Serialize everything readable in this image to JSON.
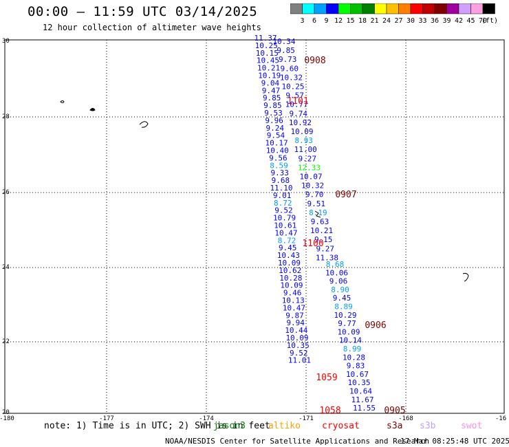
{
  "header": {
    "title": "00:00 – 11:59 UTC 03/14/2025",
    "subtitle": "12 hour collection of altimeter wave heights"
  },
  "colorbar": {
    "unit_label": "(ft)",
    "labels": [
      "3",
      "6",
      "9",
      "12",
      "15",
      "18",
      "21",
      "24",
      "27",
      "30",
      "33",
      "36",
      "39",
      "42",
      "45",
      "70"
    ],
    "colors": [
      "#808080",
      "#00ffff",
      "#00a0ff",
      "#0000ff",
      "#00ff00",
      "#00c000",
      "#008000",
      "#ffff00",
      "#ffc000",
      "#ff8000",
      "#ff0000",
      "#c00000",
      "#800000",
      "#a000a0",
      "#d0a0ff",
      "#ffa0e0",
      "#000000"
    ]
  },
  "axes": {
    "lon_ticks": [
      "-180",
      "-177",
      "-174",
      "-171",
      "-168",
      "-16"
    ],
    "lat_ticks": [
      "30",
      "28",
      "26",
      "24",
      "22",
      "20"
    ]
  },
  "points_left": [
    [
      "11.37",
      "#0000ff"
    ],
    [
      "10.25",
      "#0000ff"
    ],
    [
      "10.15",
      "#0000ff"
    ],
    [
      "10.45",
      "#0000ff"
    ],
    [
      "10.21",
      "#0000ff"
    ],
    [
      "10.19",
      "#0000ff"
    ],
    [
      "9.04",
      "#0000ff"
    ],
    [
      "9.47",
      "#0000ff"
    ],
    [
      "9.85",
      "#0000ff"
    ],
    [
      "9.85",
      "#0000ff"
    ],
    [
      "9.53",
      "#0000ff"
    ],
    [
      "9.96",
      "#0000ff"
    ],
    [
      "9.24",
      "#0000ff"
    ],
    [
      "9.54",
      "#0000ff"
    ],
    [
      "10.17",
      "#0000ff"
    ],
    [
      "10.40",
      "#0000ff"
    ],
    [
      "9.56",
      "#0000ff"
    ],
    [
      "8.59",
      "#00a0ff"
    ],
    [
      "9.33",
      "#0000ff"
    ],
    [
      "9.68",
      "#0000ff"
    ],
    [
      "11.10",
      "#0000ff"
    ],
    [
      "9.01",
      "#0000ff"
    ],
    [
      "8.72",
      "#00a0ff"
    ],
    [
      "9.52",
      "#0000ff"
    ],
    [
      "10.79",
      "#0000ff"
    ],
    [
      "10.61",
      "#0000ff"
    ],
    [
      "10.47",
      "#0000ff"
    ],
    [
      "8.72",
      "#00a0ff"
    ],
    [
      "9.45",
      "#0000ff"
    ],
    [
      "10.43",
      "#0000ff"
    ],
    [
      "10.09",
      "#0000ff"
    ],
    [
      "10.62",
      "#0000ff"
    ],
    [
      "10.28",
      "#0000ff"
    ],
    [
      "10.09",
      "#0000ff"
    ],
    [
      "9.46",
      "#0000ff"
    ],
    [
      "10.13",
      "#0000ff"
    ],
    [
      "10.47",
      "#0000ff"
    ],
    [
      "9.87",
      "#0000ff"
    ],
    [
      "9.94",
      "#0000ff"
    ],
    [
      "10.44",
      "#0000ff"
    ],
    [
      "10.09",
      "#0000ff"
    ],
    [
      "10.35",
      "#0000ff"
    ],
    [
      "9.52",
      "#0000ff"
    ],
    [
      "11.01",
      "#0000ff"
    ]
  ],
  "points_mid": [
    [
      "10.34",
      "#0000ff"
    ],
    [
      "9.85",
      "#0000ff"
    ],
    [
      "9.73",
      "#0000ff"
    ],
    [
      "9.60",
      "#0000ff"
    ],
    [
      "10.32",
      "#0000ff"
    ],
    [
      "10.25",
      "#0000ff"
    ],
    [
      "9.57",
      "#0000ff"
    ],
    [
      "10.77",
      "#0000ff"
    ],
    [
      "9.74",
      "#0000ff"
    ],
    [
      "10.92",
      "#0000ff"
    ],
    [
      "10.09",
      "#0000ff"
    ],
    [
      "8.93",
      "#00a0ff"
    ],
    [
      "11.00",
      "#0000ff"
    ],
    [
      "9.27",
      "#0000ff"
    ],
    [
      "12.33",
      "#00ff00"
    ],
    [
      "10.07",
      "#0000ff"
    ],
    [
      "10.32",
      "#0000ff"
    ],
    [
      "9.70",
      "#0000ff"
    ],
    [
      "9.51",
      "#0000ff"
    ],
    [
      "8.19",
      "#00a0ff"
    ],
    [
      "9.63",
      "#0000ff"
    ],
    [
      "10.21",
      "#0000ff"
    ],
    [
      "9.15",
      "#0000ff"
    ],
    [
      "9.27",
      "#0000ff"
    ],
    [
      "11.38",
      "#0000ff"
    ]
  ],
  "points_right": [
    [
      "8.68",
      "#00a0ff"
    ],
    [
      "10.06",
      "#0000ff"
    ],
    [
      "9.06",
      "#0000ff"
    ],
    [
      "8.90",
      "#00a0ff"
    ],
    [
      "9.45",
      "#0000ff"
    ],
    [
      "8.89",
      "#00a0ff"
    ],
    [
      "10.29",
      "#0000ff"
    ],
    [
      "9.77",
      "#0000ff"
    ],
    [
      "10.09",
      "#0000ff"
    ],
    [
      "10.14",
      "#0000ff"
    ],
    [
      "8.99",
      "#00a0ff"
    ],
    [
      "10.28",
      "#0000ff"
    ],
    [
      "9.83",
      "#0000ff"
    ],
    [
      "10.67",
      "#0000ff"
    ],
    [
      "10.35",
      "#0000ff"
    ],
    [
      "10.64",
      "#0000ff"
    ],
    [
      "11.67",
      "#0000ff"
    ],
    [
      "11.55",
      "#0000ff"
    ]
  ],
  "time_labels": [
    {
      "text": "0908",
      "color": "#800000"
    },
    {
      "text": "1101",
      "color": "#ff0000"
    },
    {
      "text": "0907",
      "color": "#800000"
    },
    {
      "text": "1100",
      "color": "#ff0000"
    },
    {
      "text": "0906",
      "color": "#800000"
    },
    {
      "text": "1059",
      "color": "#ff0000"
    },
    {
      "text": "1058",
      "color": "#ff0000"
    },
    {
      "text": "0905",
      "color": "#800000"
    }
  ],
  "footer": {
    "note": "note: 1) Time is in UTC; 2) SWH is in feet",
    "satellites": [
      {
        "name": "jason3",
        "color": "#008000"
      },
      {
        "name": "altiko",
        "color": "#ffa000"
      },
      {
        "name": "cryosat",
        "color": "#ff0000"
      },
      {
        "name": "s3a",
        "color": "#800000"
      },
      {
        "name": "s3b",
        "color": "#c0a0ff"
      },
      {
        "name": "swot",
        "color": "#ff90e0"
      }
    ],
    "credit": "NOAA/NESDIS Center for Satellite Applications and Research",
    "timestamp": "17 Mar 08:25:48 UTC 2025"
  }
}
